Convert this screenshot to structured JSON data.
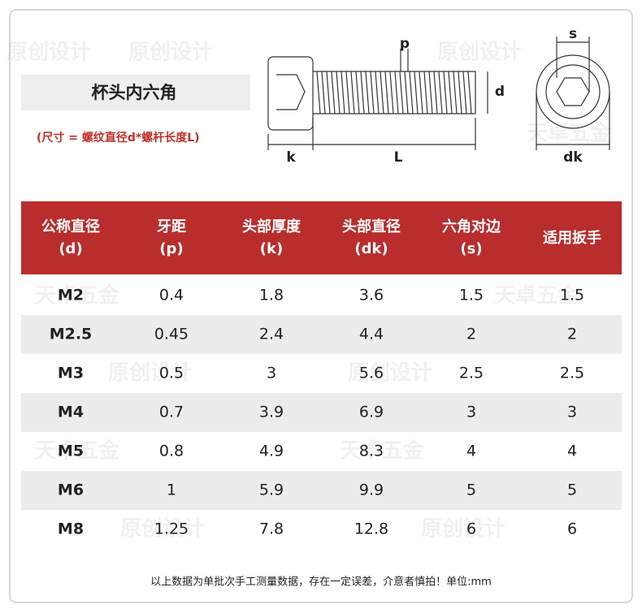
{
  "header": {
    "title": "杯头内六角",
    "note": "(尺寸 = 螺纹直径d*螺杆长度L)"
  },
  "diagram": {
    "labels": {
      "p": "p",
      "d": "d",
      "k": "k",
      "L": "L",
      "s": "s",
      "dk": "dk"
    }
  },
  "watermarks": [
    "天卓五金",
    "原创设计"
  ],
  "table": {
    "headers": [
      [
        "公称直径",
        "(d)"
      ],
      [
        "牙距",
        "(p)"
      ],
      [
        "头部厚度",
        "(k)"
      ],
      [
        "头部直径",
        "(dk)"
      ],
      [
        "六角对边",
        "(s)"
      ],
      [
        "适用扳手"
      ]
    ],
    "rows": [
      [
        "M2",
        "0.4",
        "1.8",
        "3.6",
        "1.5",
        "1.5"
      ],
      [
        "M2.5",
        "0.45",
        "2.4",
        "4.4",
        "2",
        "2"
      ],
      [
        "M3",
        "0.5",
        "3",
        "5.6",
        "2.5",
        "2.5"
      ],
      [
        "M4",
        "0.7",
        "3.9",
        "6.9",
        "3",
        "3"
      ],
      [
        "M5",
        "0.8",
        "4.9",
        "8.3",
        "4",
        "4"
      ],
      [
        "M6",
        "1",
        "5.9",
        "9.9",
        "5",
        "5"
      ],
      [
        "M8",
        "1.25",
        "7.8",
        "12.8",
        "6",
        "6"
      ]
    ]
  },
  "footer": "以上数据为单批次手工测量数据，存在一定误差，介意者慎拍！单位:mm"
}
